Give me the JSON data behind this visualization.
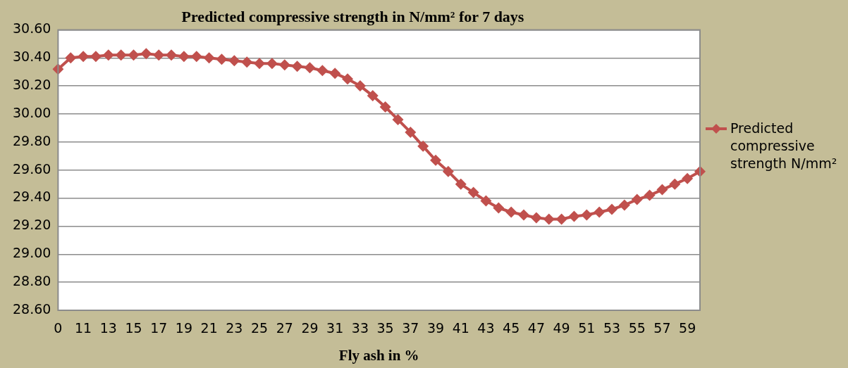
{
  "chart_data": {
    "type": "line",
    "title": "Predicted compressive strength in N/mm² for 7 days",
    "xlabel": "Fly ash in %",
    "categories": [
      "0",
      null,
      "11",
      null,
      "13",
      null,
      "15",
      null,
      "17",
      null,
      "19",
      null,
      "21",
      null,
      "23",
      null,
      "25",
      null,
      "27",
      null,
      "29",
      null,
      "31",
      null,
      "33",
      null,
      "35",
      null,
      "37",
      null,
      "39",
      null,
      "41",
      null,
      "43",
      null,
      "45",
      null,
      "47",
      null,
      "49",
      null,
      "51",
      null,
      "53",
      null,
      "55",
      null,
      "57",
      null,
      "59",
      null
    ],
    "series": [
      {
        "name": "Predicted compressive strength N/mm²",
        "color": "#c0504d",
        "values": [
          30.32,
          30.4,
          30.41,
          30.41,
          30.42,
          30.42,
          30.42,
          30.43,
          30.42,
          30.42,
          30.41,
          30.41,
          30.4,
          30.39,
          30.38,
          30.37,
          30.36,
          30.36,
          30.35,
          30.34,
          30.33,
          30.31,
          30.29,
          30.25,
          30.2,
          30.13,
          30.05,
          29.96,
          29.87,
          29.77,
          29.67,
          29.59,
          29.5,
          29.44,
          29.38,
          29.33,
          29.3,
          29.28,
          29.26,
          29.25,
          29.25,
          29.27,
          29.28,
          29.3,
          29.32,
          29.35,
          29.39,
          29.42,
          29.46,
          29.5,
          29.54,
          29.59
        ]
      }
    ],
    "ylim": [
      28.6,
      30.6
    ],
    "yticks": [
      {
        "value": 28.6,
        "label": "28.60"
      },
      {
        "value": 28.8,
        "label": "28.80"
      },
      {
        "value": 29.0,
        "label": "29.00"
      },
      {
        "value": 29.2,
        "label": "29.20"
      },
      {
        "value": 29.4,
        "label": "29.40"
      },
      {
        "value": 29.6,
        "label": "29.60"
      },
      {
        "value": 29.8,
        "label": "29.80"
      },
      {
        "value": 30.0,
        "label": "30.00"
      },
      {
        "value": 30.2,
        "label": "30.20"
      },
      {
        "value": 30.4,
        "label": "30.40"
      },
      {
        "value": 30.6,
        "label": "30.60"
      }
    ],
    "grid": "y",
    "legend": "right",
    "marker": "diamond",
    "line_style": "solid"
  }
}
